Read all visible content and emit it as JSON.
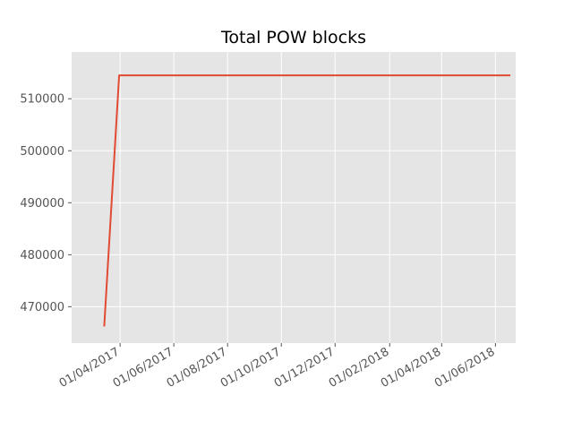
{
  "chart_data": {
    "type": "line",
    "title": "Total POW blocks",
    "xlabel": "",
    "ylabel": "",
    "x_type": "date",
    "xlim": [
      "2017-02-05",
      "2018-06-24"
    ],
    "ylim": [
      463000,
      519000
    ],
    "grid": true,
    "legend": "none",
    "colors": {
      "plot_background": "#e5e5e5",
      "grid": "#ffffff",
      "line": "#e24a33",
      "tick_text": "#555555"
    },
    "x_ticks": [
      {
        "value": "2017-04-01",
        "label": "01/04/2017"
      },
      {
        "value": "2017-06-01",
        "label": "01/06/2017"
      },
      {
        "value": "2017-08-01",
        "label": "01/08/2017"
      },
      {
        "value": "2017-10-01",
        "label": "01/10/2017"
      },
      {
        "value": "2017-12-01",
        "label": "01/12/2017"
      },
      {
        "value": "2018-02-01",
        "label": "01/02/2018"
      },
      {
        "value": "2018-04-01",
        "label": "01/04/2018"
      },
      {
        "value": "2018-06-01",
        "label": "01/06/2018"
      }
    ],
    "y_ticks": [
      {
        "value": 470000,
        "label": "470000"
      },
      {
        "value": 480000,
        "label": "480000"
      },
      {
        "value": 490000,
        "label": "490000"
      },
      {
        "value": 500000,
        "label": "500000"
      },
      {
        "value": 510000,
        "label": "510000"
      }
    ],
    "series": [
      {
        "x": [
          "2017-03-14",
          "2017-03-31",
          "2018-06-18"
        ],
        "y": [
          466200,
          514500,
          514500
        ]
      }
    ]
  }
}
